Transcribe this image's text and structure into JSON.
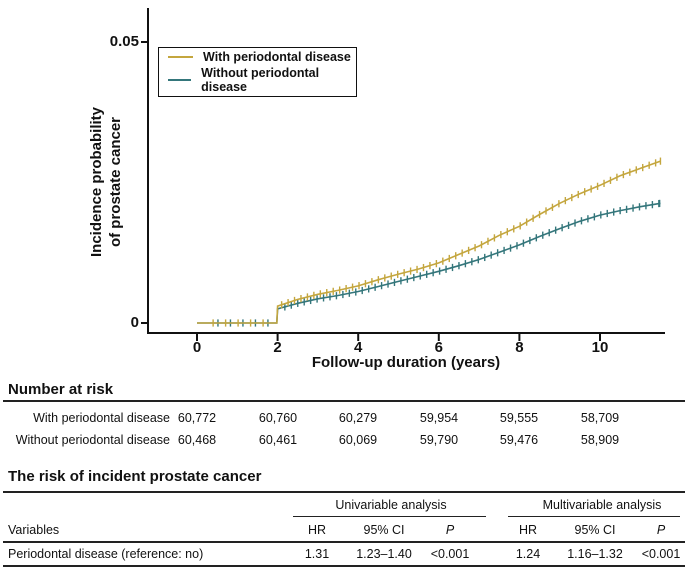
{
  "chart": {
    "y_axis_title_lines": [
      "Incidence probability",
      "of prostate cancer"
    ]
  },
  "chart_data": {
    "type": "line",
    "title": "",
    "xlabel": "Follow-up duration (years)",
    "ylabel": "Incidence probability of prostate cancer",
    "xlim": [
      -1.2,
      11.6
    ],
    "ylim": [
      0,
      0.055
    ],
    "x_ticks": [
      0,
      2,
      4,
      6,
      8,
      10
    ],
    "y_ticks": [
      0,
      0.05
    ],
    "grid": false,
    "legend_position": "upper-left",
    "censor_marks": true,
    "series": [
      {
        "name": "With periodontal disease",
        "color": "#c4a63e",
        "points": [
          [
            0,
            0
          ],
          [
            1.98,
            0
          ],
          [
            2,
            0.003
          ],
          [
            2.5,
            0.0042
          ],
          [
            3,
            0.0051
          ],
          [
            3.5,
            0.0058
          ],
          [
            4,
            0.0066
          ],
          [
            4.5,
            0.0077
          ],
          [
            5,
            0.0087
          ],
          [
            5.5,
            0.0096
          ],
          [
            6,
            0.0107
          ],
          [
            6.5,
            0.0122
          ],
          [
            7,
            0.0137
          ],
          [
            7.5,
            0.0156
          ],
          [
            8,
            0.0172
          ],
          [
            8.5,
            0.0193
          ],
          [
            9,
            0.0213
          ],
          [
            9.5,
            0.023
          ],
          [
            10,
            0.0245
          ],
          [
            10.5,
            0.0262
          ],
          [
            11,
            0.0275
          ],
          [
            11.5,
            0.0288
          ]
        ]
      },
      {
        "name": "Without periodontal disease",
        "color": "#34767b",
        "points": [
          [
            0,
            0
          ],
          [
            1.98,
            0
          ],
          [
            2,
            0.0025
          ],
          [
            2.5,
            0.0035
          ],
          [
            3,
            0.0043
          ],
          [
            3.5,
            0.0049
          ],
          [
            4,
            0.0056
          ],
          [
            4.5,
            0.0065
          ],
          [
            5,
            0.0074
          ],
          [
            5.5,
            0.0083
          ],
          [
            6,
            0.0092
          ],
          [
            6.5,
            0.0102
          ],
          [
            7,
            0.0113
          ],
          [
            7.5,
            0.0126
          ],
          [
            8,
            0.0139
          ],
          [
            8.5,
            0.0154
          ],
          [
            9,
            0.0168
          ],
          [
            9.5,
            0.0181
          ],
          [
            10,
            0.0192
          ],
          [
            10.5,
            0.02
          ],
          [
            11,
            0.0207
          ],
          [
            11.5,
            0.0213
          ]
        ]
      }
    ]
  },
  "number_at_risk": {
    "heading": "Number at risk",
    "rows": [
      {
        "label": "With periodontal disease",
        "values": [
          "60,772",
          "60,760",
          "60,279",
          "59,954",
          "59,555",
          "58,709"
        ]
      },
      {
        "label": "Without periodontal disease",
        "values": [
          "60,468",
          "60,461",
          "60,069",
          "59,790",
          "59,476",
          "58,909"
        ]
      }
    ]
  },
  "risk_table": {
    "heading": "The risk of incident prostate cancer",
    "group_headers": [
      "Univariable analysis",
      "Multivariable analysis"
    ],
    "col_headers": {
      "variables": "Variables",
      "hr": "HR",
      "ci": "95% CI",
      "p": "P"
    },
    "rows": [
      {
        "variable": "Periodontal disease (reference: no)",
        "uni_hr": "1.31",
        "uni_ci": "1.23–1.40",
        "uni_p": "<0.001",
        "multi_hr": "1.24",
        "multi_ci": "1.16–1.32",
        "multi_p": "<0.001"
      }
    ]
  }
}
